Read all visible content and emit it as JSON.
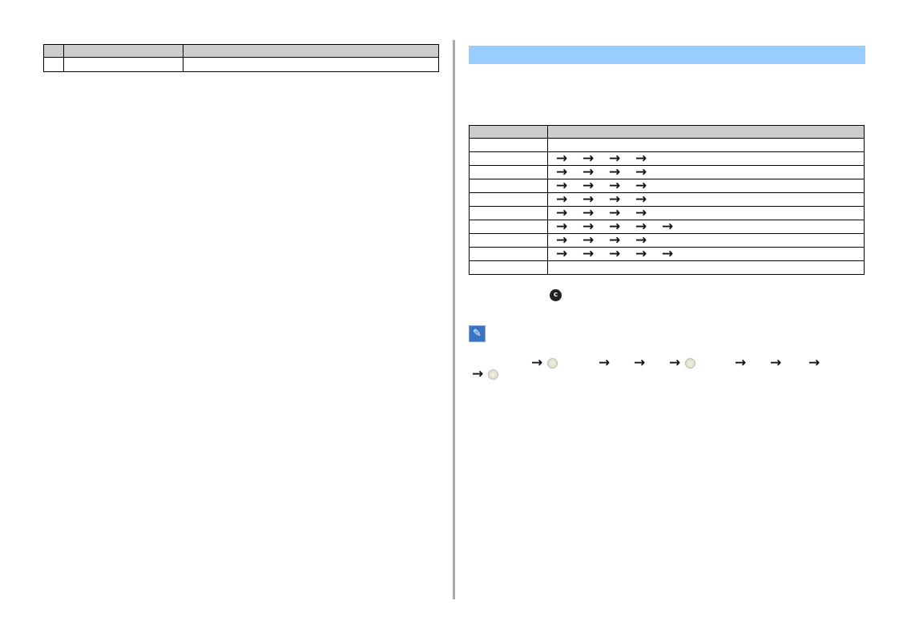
{
  "arrow_glyph": "→",
  "colors": {
    "section_bar": "#99ccff",
    "table_header": "#cccccc",
    "divider": "#aaaaaa",
    "note_icon": "#3b73c4"
  },
  "left_table": {
    "columns": 3,
    "rows": 1
  },
  "right_table": {
    "columns": 2,
    "arrow_counts": [
      0,
      4,
      4,
      4,
      4,
      4,
      5,
      4,
      5,
      0
    ]
  },
  "icons": [
    "clear-c-button-icon",
    "note-pencil-icon",
    "enter-button-icon"
  ]
}
